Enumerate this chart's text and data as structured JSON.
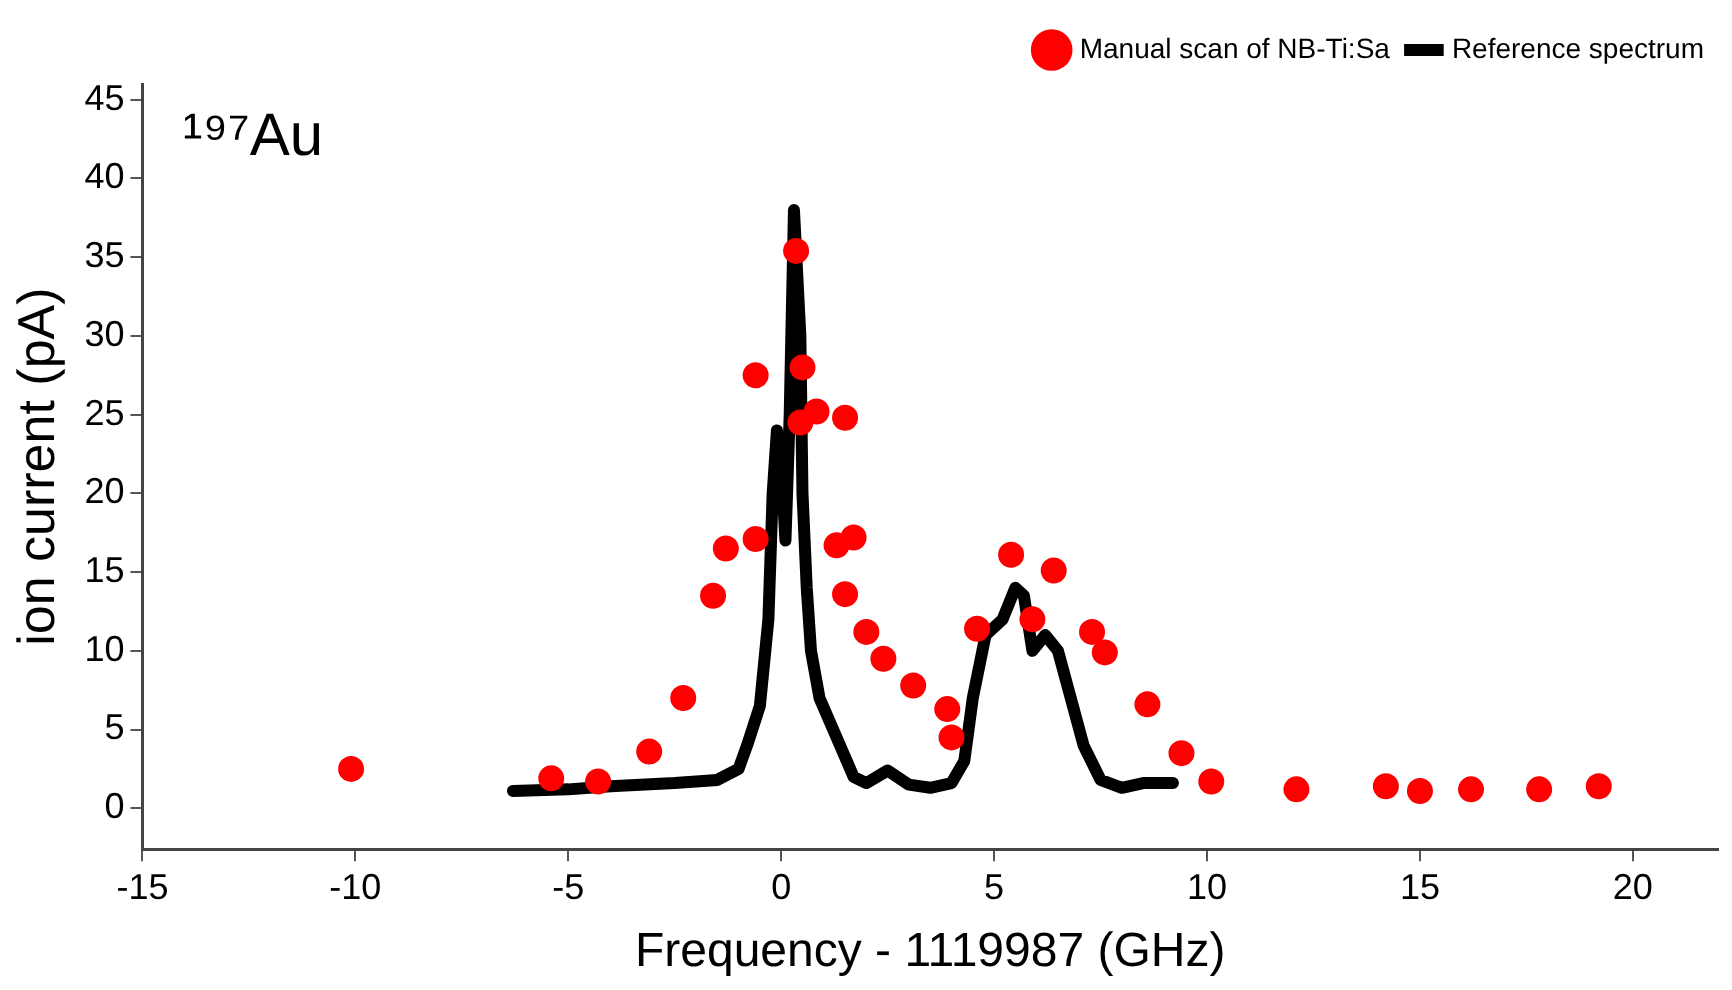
{
  "chart_data": {
    "type": "scatter",
    "xlabel": "Frequency - 1119987 (GHz)",
    "ylabel": "ion current (pA)",
    "annotations": [
      "¹⁹⁷Au"
    ],
    "xlim": [
      -15,
      22
    ],
    "xticks": [
      -15,
      -10,
      -5,
      0,
      5,
      10,
      15,
      20
    ],
    "ylim": [
      -2.6,
      46
    ],
    "yticks": [
      0,
      5,
      10,
      15,
      20,
      25,
      30,
      35,
      40,
      45
    ],
    "legend": "top right",
    "grid": false,
    "series": [
      {
        "name": "Manual scan of NB-Ti:Sa",
        "marker": "circle",
        "color": "#ff0000",
        "x": [
          -10.1,
          -5.4,
          -4.3,
          -3.1,
          -2.3,
          -1.6,
          -1.3,
          -0.6,
          -0.6,
          0.35,
          0.5,
          0.83,
          0.45,
          1.5,
          1.3,
          1.7,
          1.5,
          2.0,
          2.4,
          3.1,
          3.9,
          4.0,
          4.6,
          5.4,
          5.9,
          6.4,
          7.3,
          7.6,
          8.6,
          9.4,
          10.1,
          12.1,
          14.2,
          15.0,
          16.2,
          17.8,
          19.2
        ],
        "values": [
          2.5,
          1.9,
          1.7,
          3.6,
          7.0,
          13.5,
          16.5,
          17.1,
          27.5,
          35.4,
          28.0,
          25.2,
          24.5,
          24.8,
          16.7,
          17.2,
          13.6,
          11.2,
          9.5,
          7.8,
          6.3,
          4.5,
          11.4,
          16.1,
          12.0,
          15.1,
          11.2,
          9.9,
          6.6,
          3.5,
          1.7,
          1.2,
          1.4,
          1.1,
          1.2,
          1.2,
          1.4
        ]
      },
      {
        "name": "Reference spectrum",
        "type": "line",
        "marker": "none",
        "line_style": "solid",
        "color": "#000000",
        "x": [
          -6.3,
          -5,
          -4,
          -2.5,
          -1.5,
          -1.0,
          -0.8,
          -0.5,
          -0.3,
          -0.2,
          -0.1,
          0,
          0.1,
          0.2,
          0.3,
          0.45,
          0.5,
          0.6,
          0.7,
          0.9,
          1.3,
          1.7,
          2.0,
          2.5,
          3.0,
          3.5,
          4.0,
          4.3,
          4.5,
          4.8,
          5.2,
          5.5,
          5.7,
          5.9,
          6.2,
          6.5,
          6.8,
          7.1,
          7.5,
          8,
          8.5,
          9.2
        ],
        "values": [
          1.1,
          1.2,
          1.4,
          1.6,
          1.8,
          2.5,
          4,
          6.5,
          12,
          20,
          24,
          22,
          17,
          25,
          38,
          30,
          20,
          14,
          10,
          7,
          4.5,
          2,
          1.6,
          2.4,
          1.5,
          1.3,
          1.6,
          3,
          7,
          11,
          12,
          14,
          13.5,
          10,
          11,
          10,
          7,
          4,
          1.8,
          1.3,
          1.6,
          1.6
        ]
      }
    ]
  }
}
